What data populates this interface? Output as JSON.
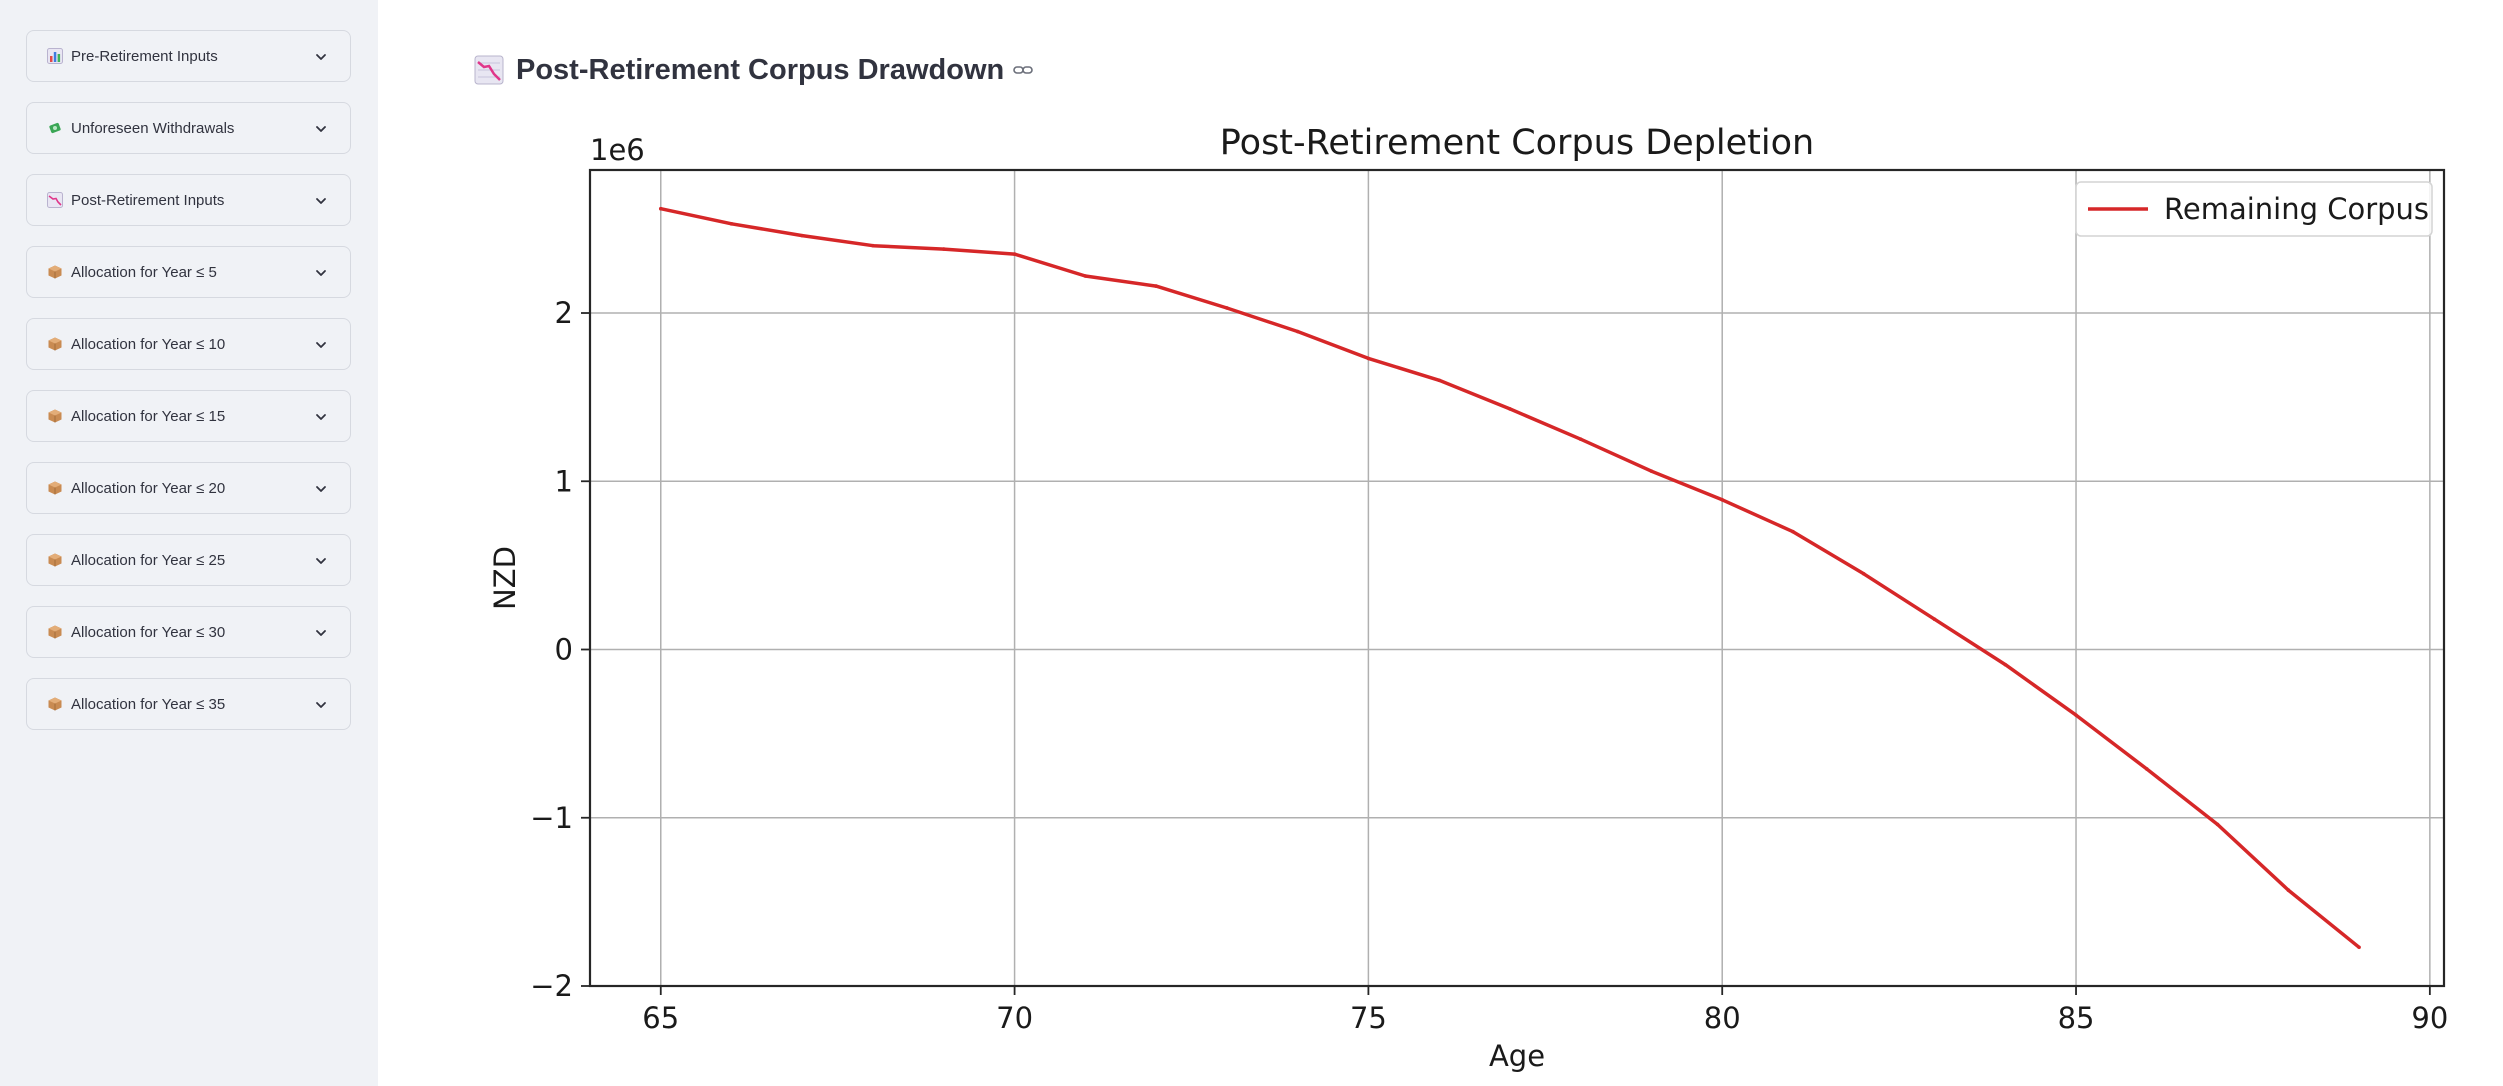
{
  "sidebar": {
    "expanders": [
      {
        "label": "Pre-Retirement Inputs",
        "icon": "bar-chart-icon"
      },
      {
        "label": "Unforeseen Withdrawals",
        "icon": "money-wings-icon"
      },
      {
        "label": "Post-Retirement Inputs",
        "icon": "chart-decreasing-icon"
      },
      {
        "label": "Allocation for Year ≤ 5",
        "icon": "package-icon"
      },
      {
        "label": "Allocation for Year ≤ 10",
        "icon": "package-icon"
      },
      {
        "label": "Allocation for Year ≤ 15",
        "icon": "package-icon"
      },
      {
        "label": "Allocation for Year ≤ 20",
        "icon": "package-icon"
      },
      {
        "label": "Allocation for Year ≤ 25",
        "icon": "package-icon"
      },
      {
        "label": "Allocation for Year ≤ 30",
        "icon": "package-icon"
      },
      {
        "label": "Allocation for Year ≤ 35",
        "icon": "package-icon"
      }
    ]
  },
  "main": {
    "section_title": "Post-Retirement Corpus Drawdown",
    "section_icon": "chart-decreasing-icon"
  },
  "colors": {
    "line": "#d62728",
    "sidebar_bg": "#f0f2f6",
    "text": "#31333f"
  },
  "chart_data": {
    "type": "line",
    "title": "Post-Retirement Corpus Depletion",
    "xlabel": "Age",
    "ylabel": "NZD",
    "y_scale_label": "1e6",
    "xlim": [
      64,
      90.2
    ],
    "ylim": [
      -2.0,
      2.85
    ],
    "xticks": [
      65,
      70,
      75,
      80,
      85,
      90
    ],
    "yticks": [
      2,
      1,
      0,
      -1,
      -2
    ],
    "ytick_labels": [
      "2",
      "1",
      "0",
      "−1",
      "−2"
    ],
    "grid": true,
    "legend_position": "top-right",
    "series": [
      {
        "name": "Remaining Corpus",
        "x": [
          65,
          66,
          67,
          68,
          69,
          70,
          71,
          72,
          73,
          74,
          75,
          76,
          77,
          78,
          79,
          80,
          81,
          82,
          83,
          84,
          85,
          86,
          87,
          88,
          89
        ],
        "y": [
          2.62,
          2.53,
          2.46,
          2.4,
          2.38,
          2.35,
          2.22,
          2.16,
          2.03,
          1.89,
          1.73,
          1.6,
          1.43,
          1.25,
          1.06,
          0.89,
          0.7,
          0.45,
          0.18,
          -0.09,
          -0.39,
          -0.71,
          -1.04,
          -1.43,
          -1.77
        ]
      }
    ]
  }
}
